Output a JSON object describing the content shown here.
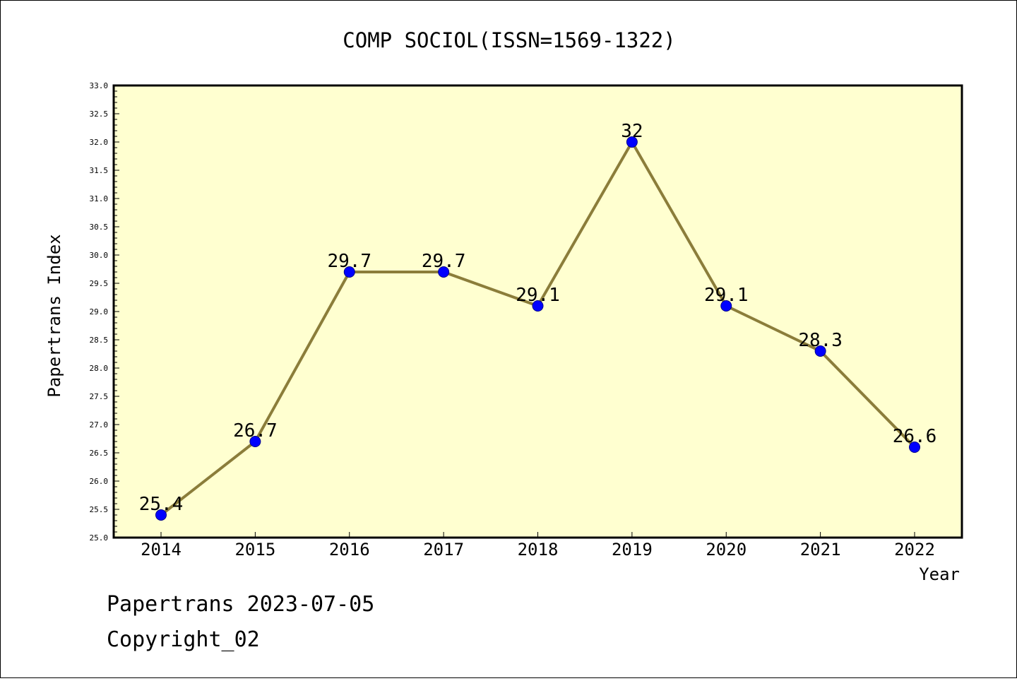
{
  "chart_data": {
    "type": "line",
    "title": "COMP SOCIOL(ISSN=1569-1322)",
    "xlabel": "Year",
    "ylabel": "Papertrans Index",
    "x": [
      "2014",
      "2015",
      "2016",
      "2017",
      "2018",
      "2019",
      "2020",
      "2021",
      "2022"
    ],
    "values": [
      25.4,
      26.7,
      29.7,
      29.7,
      29.1,
      32,
      29.1,
      28.3,
      26.6
    ],
    "data_labels": [
      "25.4",
      "26.7",
      "29.7",
      "29.7",
      "29.1",
      "32",
      "29.1",
      "28.3",
      "26.6"
    ],
    "ylim": [
      25.0,
      33.0
    ],
    "yticks": [
      "25.0",
      "25.5",
      "26.0",
      "26.5",
      "27.0",
      "27.5",
      "28.0",
      "28.5",
      "29.0",
      "29.5",
      "30.0",
      "30.5",
      "31.0",
      "31.5",
      "32.0",
      "32.5",
      "33.0"
    ],
    "grid": false,
    "colors": {
      "plot_background": "#ffffd0",
      "line": "#8b7d3a",
      "marker": "#0000ff"
    }
  },
  "footer": {
    "line1": "Papertrans 2023-07-05",
    "line2": "Copyright_02"
  }
}
